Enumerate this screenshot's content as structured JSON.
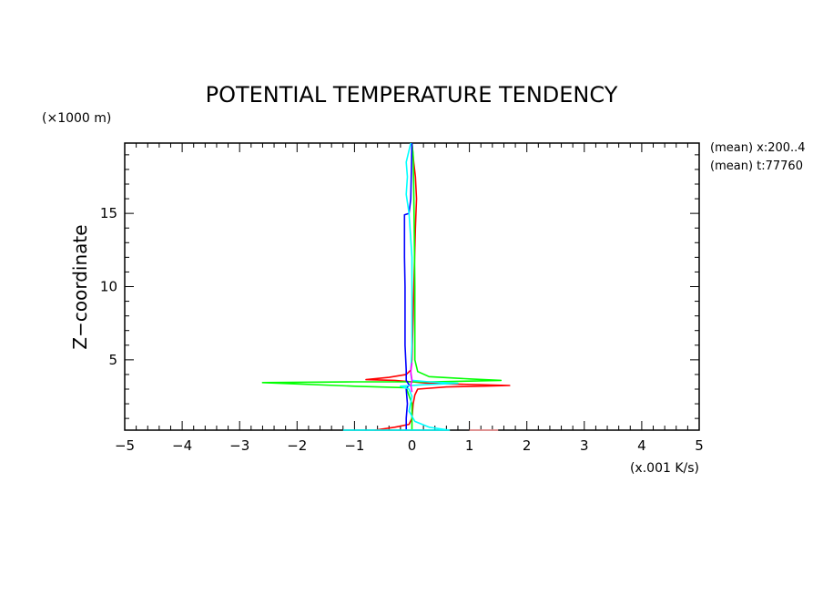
{
  "chart_data": {
    "type": "line",
    "title": "POTENTIAL TEMPERATURE TENDENCY",
    "xlabel": "(x.001 K/s)",
    "ylabel": "Z−coordinate",
    "yunit": "(×1000 m)",
    "annotations": [
      "(mean) x:200..4",
      "(mean) t:77760"
    ],
    "xlim": [
      -5,
      5
    ],
    "ylim": [
      0.2,
      19.8
    ],
    "xticks": [
      -5,
      -4,
      -3,
      -2,
      -1,
      0,
      1,
      2,
      3,
      4,
      5
    ],
    "xtick_labels": [
      "−5",
      "−4",
      "−3",
      "−2",
      "−1",
      "0",
      "1",
      "2",
      "3",
      "4",
      "5"
    ],
    "yticks": [
      5,
      10,
      15
    ],
    "ytick_labels": [
      "5",
      "10",
      "15"
    ],
    "grid": false,
    "series": [
      {
        "color": "#ff0000",
        "points": [
          [
            -0.65,
            0.2
          ],
          [
            -0.3,
            0.4
          ],
          [
            -0.05,
            0.6
          ],
          [
            0.0,
            1.0
          ],
          [
            0.02,
            2.0
          ],
          [
            0.05,
            2.6
          ],
          [
            0.1,
            3.0
          ],
          [
            0.6,
            3.15
          ],
          [
            1.2,
            3.2
          ],
          [
            1.7,
            3.25
          ],
          [
            1.2,
            3.3
          ],
          [
            0.3,
            3.4
          ],
          [
            0.0,
            3.5
          ],
          [
            -0.3,
            3.6
          ],
          [
            -0.8,
            3.65
          ],
          [
            -0.4,
            3.8
          ],
          [
            -0.1,
            4.0
          ],
          [
            -0.02,
            4.3
          ],
          [
            0.0,
            5
          ],
          [
            0.02,
            8
          ],
          [
            0.04,
            11
          ],
          [
            0.06,
            14
          ],
          [
            0.08,
            16
          ],
          [
            0.06,
            17.5
          ],
          [
            0.03,
            18.5
          ],
          [
            0.0,
            19.8
          ]
        ]
      },
      {
        "color": "#00ff00",
        "points": [
          [
            0.0,
            0.2
          ],
          [
            0.0,
            1.0
          ],
          [
            0.0,
            2.0
          ],
          [
            -0.1,
            3.1
          ],
          [
            -1.0,
            3.2
          ],
          [
            -2.6,
            3.45
          ],
          [
            -1.0,
            3.5
          ],
          [
            0.3,
            3.5
          ],
          [
            1.0,
            3.55
          ],
          [
            1.55,
            3.6
          ],
          [
            1.0,
            3.7
          ],
          [
            0.3,
            3.85
          ],
          [
            0.1,
            4.2
          ],
          [
            0.05,
            5
          ],
          [
            0.05,
            10
          ],
          [
            0.04,
            14
          ],
          [
            0.03,
            17
          ],
          [
            0.02,
            19
          ],
          [
            0.0,
            19.8
          ]
        ]
      },
      {
        "color": "#0000ff",
        "points": [
          [
            -0.1,
            0.2
          ],
          [
            -0.1,
            1.0
          ],
          [
            -0.08,
            2.0
          ],
          [
            -0.1,
            3.0
          ],
          [
            -0.05,
            3.3
          ],
          [
            -0.1,
            3.6
          ],
          [
            -0.1,
            4.3
          ],
          [
            -0.12,
            6
          ],
          [
            -0.12,
            10
          ],
          [
            -0.13,
            12
          ],
          [
            -0.13,
            14.9
          ],
          [
            -0.05,
            15
          ],
          [
            -0.02,
            16
          ],
          [
            0.0,
            19.8
          ]
        ]
      },
      {
        "color": "#00ffff",
        "points": [
          [
            -1.2,
            0.2
          ],
          [
            0.65,
            0.2
          ],
          [
            0.3,
            0.4
          ],
          [
            0.05,
            0.8
          ],
          [
            -0.05,
            1.5
          ],
          [
            0.0,
            2.5
          ],
          [
            -0.05,
            3.0
          ],
          [
            -0.2,
            3.2
          ],
          [
            0.2,
            3.3
          ],
          [
            0.8,
            3.4
          ],
          [
            0.3,
            3.5
          ],
          [
            0.0,
            3.6
          ],
          [
            -0.02,
            4.0
          ],
          [
            0.0,
            6
          ],
          [
            0.0,
            12
          ],
          [
            -0.05,
            15
          ],
          [
            -0.1,
            16.3
          ],
          [
            -0.08,
            17.5
          ],
          [
            -0.1,
            18.5
          ],
          [
            -0.02,
            19.8
          ]
        ]
      },
      {
        "color": "#ff00ff",
        "points": [
          [
            0.0,
            2.8
          ],
          [
            -0.02,
            3.3
          ],
          [
            0.0,
            3.6
          ],
          [
            -0.02,
            4.2
          ],
          [
            0.0,
            4.8
          ]
        ]
      },
      {
        "color": "#ff9999",
        "points": [
          [
            1.0,
            0.2
          ],
          [
            1.5,
            0.2
          ]
        ]
      }
    ]
  }
}
